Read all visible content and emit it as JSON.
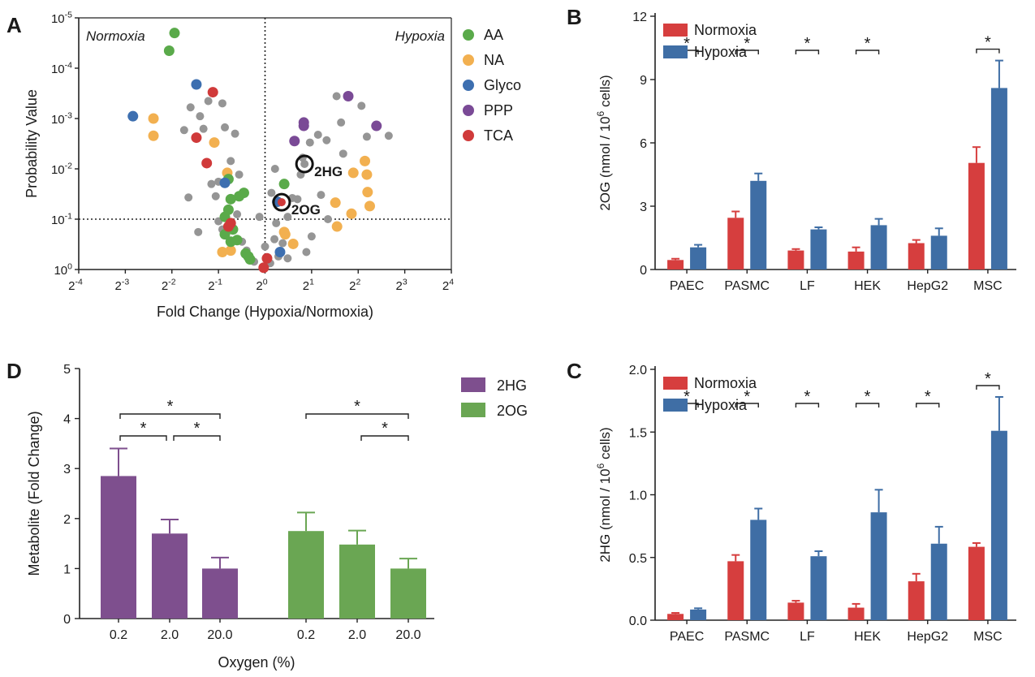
{
  "panels": {
    "A": "A",
    "B": "B",
    "C": "C",
    "D": "D"
  },
  "colors": {
    "AA": "#5aaa4a",
    "NA": "#f2b050",
    "Glyco": "#3d6fb0",
    "PPP": "#7a4a96",
    "TCA": "#d03a3a",
    "other": "#959595",
    "normoxia": "#d63e3e",
    "hypoxia": "#3f6ea5",
    "hg": "#7e4f8e",
    "og": "#6aa653"
  },
  "chart_data": [
    {
      "panel": "A",
      "type": "scatter",
      "xlabel": "Fold Change (Hypoxia/Normoxia)",
      "ylabel": "Probability Value",
      "x_scale": "log2",
      "y_scale": "log10-inverted",
      "xlim": [
        0.0625,
        16
      ],
      "ylim": [
        1,
        1e-05
      ],
      "x_ticks": [
        {
          "base": "2",
          "exp": "-4"
        },
        {
          "base": "2",
          "exp": "-3"
        },
        {
          "base": "2",
          "exp": "-2"
        },
        {
          "base": "2",
          "exp": "-1"
        },
        {
          "base": "2",
          "exp": "0"
        },
        {
          "base": "2",
          "exp": "1"
        },
        {
          "base": "2",
          "exp": "2"
        },
        {
          "base": "2",
          "exp": "3"
        },
        {
          "base": "2",
          "exp": "4"
        }
      ],
      "y_ticks": [
        {
          "base": "10",
          "exp": "-5"
        },
        {
          "base": "10",
          "exp": "-4"
        },
        {
          "base": "10",
          "exp": "-3"
        },
        {
          "base": "10",
          "exp": "-2"
        },
        {
          "base": "10",
          "exp": "-1"
        },
        {
          "base": "10",
          "exp": "0"
        }
      ],
      "threshold_p": 0.1,
      "vline_fc": 1,
      "region_left": "Normoxia",
      "region_right": "Hypoxia",
      "legend": [
        "AA",
        "NA",
        "Glyco",
        "PPP",
        "TCA"
      ],
      "legend_position": "right",
      "points": [
        {
          "fc": 0.26,
          "p": 2e-05,
          "cls": "AA"
        },
        {
          "fc": 0.24,
          "p": 4.5e-05,
          "cls": "AA"
        },
        {
          "fc": 0.36,
          "p": 0.00021,
          "cls": "Glyco"
        },
        {
          "fc": 0.46,
          "p": 0.0003,
          "cls": "TCA"
        },
        {
          "fc": 0.14,
          "p": 0.0009,
          "cls": "Glyco"
        },
        {
          "fc": 0.19,
          "p": 0.001,
          "cls": "NA"
        },
        {
          "fc": 0.19,
          "p": 0.0022,
          "cls": "NA"
        },
        {
          "fc": 0.36,
          "p": 0.0024,
          "cls": "TCA"
        },
        {
          "fc": 0.47,
          "p": 0.003,
          "cls": "NA"
        },
        {
          "fc": 0.42,
          "p": 0.0077,
          "cls": "TCA"
        },
        {
          "fc": 0.57,
          "p": 0.012,
          "cls": "NA"
        },
        {
          "fc": 0.58,
          "p": 0.016,
          "cls": "AA"
        },
        {
          "fc": 0.55,
          "p": 0.019,
          "cls": "Glyco"
        },
        {
          "fc": 0.68,
          "p": 0.035,
          "cls": "AA"
        },
        {
          "fc": 0.73,
          "p": 0.03,
          "cls": "AA"
        },
        {
          "fc": 0.6,
          "p": 0.04,
          "cls": "AA"
        },
        {
          "fc": 0.58,
          "p": 0.065,
          "cls": "AA"
        },
        {
          "fc": 0.55,
          "p": 0.09,
          "cls": "AA"
        },
        {
          "fc": 0.6,
          "p": 0.12,
          "cls": "TCA"
        },
        {
          "fc": 0.58,
          "p": 0.14,
          "cls": "TCA"
        },
        {
          "fc": 0.62,
          "p": 0.16,
          "cls": "AA"
        },
        {
          "fc": 0.55,
          "p": 0.2,
          "cls": "AA"
        },
        {
          "fc": 0.66,
          "p": 0.26,
          "cls": "AA"
        },
        {
          "fc": 0.6,
          "p": 0.28,
          "cls": "AA"
        },
        {
          "fc": 0.53,
          "p": 0.45,
          "cls": "NA"
        },
        {
          "fc": 0.6,
          "p": 0.42,
          "cls": "NA"
        },
        {
          "fc": 0.75,
          "p": 0.48,
          "cls": "AA"
        },
        {
          "fc": 0.78,
          "p": 0.55,
          "cls": "AA"
        },
        {
          "fc": 0.8,
          "p": 0.63,
          "cls": "AA"
        },
        {
          "fc": 0.98,
          "p": 0.92,
          "cls": "TCA"
        },
        {
          "fc": 1.03,
          "p": 0.6,
          "cls": "TCA"
        },
        {
          "fc": 1.2,
          "p": 0.045,
          "cls": "Glyco"
        },
        {
          "fc": 1.33,
          "p": 0.02,
          "cls": "AA"
        },
        {
          "fc": 1.25,
          "p": 0.45,
          "cls": "Glyco"
        },
        {
          "fc": 1.33,
          "p": 0.18,
          "cls": "NA"
        },
        {
          "fc": 1.35,
          "p": 0.2,
          "cls": "NA"
        },
        {
          "fc": 1.52,
          "p": 0.31,
          "cls": "NA"
        },
        {
          "fc": 1.55,
          "p": 0.0028,
          "cls": "PPP"
        },
        {
          "fc": 1.78,
          "p": 0.0012,
          "cls": "PPP"
        },
        {
          "fc": 1.78,
          "p": 0.0014,
          "cls": "PPP"
        },
        {
          "fc": 3.45,
          "p": 0.00036,
          "cls": "PPP"
        },
        {
          "fc": 5.25,
          "p": 0.0014,
          "cls": "PPP"
        },
        {
          "fc": 4.42,
          "p": 0.007,
          "cls": "NA"
        },
        {
          "fc": 3.72,
          "p": 0.012,
          "cls": "NA"
        },
        {
          "fc": 4.55,
          "p": 0.013,
          "cls": "NA"
        },
        {
          "fc": 4.6,
          "p": 0.029,
          "cls": "NA"
        },
        {
          "fc": 2.85,
          "p": 0.047,
          "cls": "NA"
        },
        {
          "fc": 4.75,
          "p": 0.055,
          "cls": "NA"
        },
        {
          "fc": 3.62,
          "p": 0.078,
          "cls": "NA"
        },
        {
          "fc": 2.92,
          "p": 0.14,
          "cls": "NA"
        },
        {
          "fc": 0.33,
          "p": 0.0006,
          "cls": "other"
        },
        {
          "fc": 0.3,
          "p": 0.0017,
          "cls": "other"
        },
        {
          "fc": 0.38,
          "p": 0.0009,
          "cls": "other"
        },
        {
          "fc": 0.4,
          "p": 0.0016,
          "cls": "other"
        },
        {
          "fc": 0.43,
          "p": 0.00045,
          "cls": "other"
        },
        {
          "fc": 0.53,
          "p": 0.0005,
          "cls": "other"
        },
        {
          "fc": 0.55,
          "p": 0.0015,
          "cls": "other"
        },
        {
          "fc": 0.64,
          "p": 0.002,
          "cls": "other"
        },
        {
          "fc": 0.45,
          "p": 0.02,
          "cls": "other"
        },
        {
          "fc": 0.5,
          "p": 0.018,
          "cls": "other"
        },
        {
          "fc": 0.6,
          "p": 0.007,
          "cls": "other"
        },
        {
          "fc": 0.68,
          "p": 0.013,
          "cls": "other"
        },
        {
          "fc": 0.32,
          "p": 0.037,
          "cls": "other"
        },
        {
          "fc": 0.48,
          "p": 0.035,
          "cls": "other"
        },
        {
          "fc": 0.37,
          "p": 0.18,
          "cls": "other"
        },
        {
          "fc": 0.5,
          "p": 0.11,
          "cls": "other"
        },
        {
          "fc": 0.53,
          "p": 0.16,
          "cls": "other"
        },
        {
          "fc": 0.66,
          "p": 0.08,
          "cls": "other"
        },
        {
          "fc": 0.71,
          "p": 0.28,
          "cls": "other"
        },
        {
          "fc": 0.76,
          "p": 0.42,
          "cls": "other"
        },
        {
          "fc": 0.85,
          "p": 0.7,
          "cls": "other"
        },
        {
          "fc": 1.08,
          "p": 0.75,
          "cls": "other"
        },
        {
          "fc": 1.0,
          "p": 0.35,
          "cls": "other"
        },
        {
          "fc": 0.92,
          "p": 0.09,
          "cls": "other"
        },
        {
          "fc": 1.1,
          "p": 0.03,
          "cls": "other"
        },
        {
          "fc": 1.16,
          "p": 0.01,
          "cls": "other"
        },
        {
          "fc": 1.18,
          "p": 0.12,
          "cls": "other"
        },
        {
          "fc": 1.15,
          "p": 0.25,
          "cls": "other"
        },
        {
          "fc": 1.22,
          "p": 0.55,
          "cls": "other"
        },
        {
          "fc": 1.3,
          "p": 0.3,
          "cls": "other"
        },
        {
          "fc": 1.4,
          "p": 0.09,
          "cls": "other"
        },
        {
          "fc": 1.62,
          "p": 0.04,
          "cls": "other"
        },
        {
          "fc": 1.7,
          "p": 0.013,
          "cls": "other"
        },
        {
          "fc": 1.75,
          "p": 0.006,
          "cls": "other"
        },
        {
          "fc": 1.95,
          "p": 0.003,
          "cls": "other"
        },
        {
          "fc": 2.2,
          "p": 0.0021,
          "cls": "other"
        },
        {
          "fc": 2.5,
          "p": 0.0027,
          "cls": "other"
        },
        {
          "fc": 2.9,
          "p": 0.00036,
          "cls": "other"
        },
        {
          "fc": 3.1,
          "p": 0.0012,
          "cls": "other"
        },
        {
          "fc": 3.2,
          "p": 0.005,
          "cls": "other"
        },
        {
          "fc": 4.2,
          "p": 0.00056,
          "cls": "other"
        },
        {
          "fc": 4.55,
          "p": 0.0023,
          "cls": "other"
        },
        {
          "fc": 6.3,
          "p": 0.0022,
          "cls": "other"
        },
        {
          "fc": 2.3,
          "p": 0.033,
          "cls": "other"
        },
        {
          "fc": 2.55,
          "p": 0.1,
          "cls": "other"
        },
        {
          "fc": 2.0,
          "p": 0.22,
          "cls": "other"
        },
        {
          "fc": 1.85,
          "p": 0.45,
          "cls": "other"
        },
        {
          "fc": 1.4,
          "p": 0.6,
          "cls": "other"
        },
        {
          "fc": 1.5,
          "p": 0.038,
          "cls": "other"
        }
      ],
      "highlights": [
        {
          "label": "2HG",
          "fc": 1.8,
          "p": 0.008
        },
        {
          "label": "2OG",
          "fc": 1.28,
          "p": 0.046
        }
      ]
    },
    {
      "panel": "B",
      "type": "bar",
      "categories": [
        "PAEC",
        "PASMC",
        "LF",
        "HEK",
        "HepG2",
        "MSC"
      ],
      "series": [
        {
          "name": "Normoxia",
          "values": [
            0.45,
            2.45,
            0.9,
            0.85,
            1.25,
            5.05
          ],
          "errors": [
            0.06,
            0.3,
            0.07,
            0.2,
            0.15,
            0.75
          ]
        },
        {
          "name": "Hypoxia",
          "values": [
            1.05,
            4.2,
            1.9,
            2.1,
            1.6,
            8.6
          ],
          "errors": [
            0.12,
            0.35,
            0.1,
            0.3,
            0.35,
            1.3
          ]
        }
      ],
      "ylabel_main": "2OG (nmol / 10",
      "ylabel_sup": "6",
      "ylabel_tail": " cells)",
      "ylim": [
        0,
        12
      ],
      "y_ticks": [
        "0",
        "3",
        "6",
        "9",
        "12"
      ],
      "significance": [
        "*",
        "*",
        "*",
        "*",
        "",
        "*"
      ],
      "legend_position": "top-left"
    },
    {
      "panel": "C",
      "type": "bar",
      "categories": [
        "PAEC",
        "PASMC",
        "LF",
        "HEK",
        "HepG2",
        "MSC"
      ],
      "series": [
        {
          "name": "Normoxia",
          "values": [
            0.05,
            0.47,
            0.14,
            0.1,
            0.31,
            0.585
          ],
          "errors": [
            0.008,
            0.05,
            0.015,
            0.03,
            0.06,
            0.03
          ]
        },
        {
          "name": "Hypoxia",
          "values": [
            0.085,
            0.8,
            0.51,
            0.86,
            0.61,
            1.51
          ],
          "errors": [
            0.01,
            0.09,
            0.04,
            0.18,
            0.135,
            0.27
          ]
        }
      ],
      "ylabel_main": "2HG (nmol / 10",
      "ylabel_sup": "6",
      "ylabel_tail": " cells)",
      "ylim": [
        0,
        2
      ],
      "y_ticks": [
        "0.0",
        "0.5",
        "1.0",
        "1.5",
        "2.0"
      ],
      "significance": [
        "*",
        "*",
        "*",
        "*",
        "*",
        "*"
      ],
      "legend_position": "top-left"
    },
    {
      "panel": "D",
      "type": "bar",
      "xlabel": "Oxygen (%)",
      "ylabel": "Metabolite (Fold Change)",
      "ylim": [
        0,
        5
      ],
      "y_ticks": [
        "0",
        "1",
        "2",
        "3",
        "4",
        "5"
      ],
      "legend_position": "top-right",
      "groups": [
        {
          "name": "2HG",
          "categories": [
            "0.2",
            "2.0",
            "20.0"
          ],
          "values": [
            2.85,
            1.7,
            1.0
          ],
          "errors": [
            0.55,
            0.28,
            0.22
          ]
        },
        {
          "name": "2OG",
          "categories": [
            "0.2",
            "2.0",
            "20.0"
          ],
          "values": [
            1.75,
            1.48,
            1.0
          ],
          "errors": [
            0.37,
            0.28,
            0.2
          ]
        }
      ],
      "significance": [
        {
          "group": 0,
          "from": 0,
          "to": 1,
          "label": "*"
        },
        {
          "group": 0,
          "from": 1,
          "to": 2,
          "label": "*"
        },
        {
          "group": 0,
          "from": 0,
          "to": 2,
          "label": "*"
        },
        {
          "group": 1,
          "from": 1,
          "to": 2,
          "label": "*"
        },
        {
          "group": 1,
          "from": 0,
          "to": 2,
          "label": "*"
        }
      ]
    }
  ]
}
